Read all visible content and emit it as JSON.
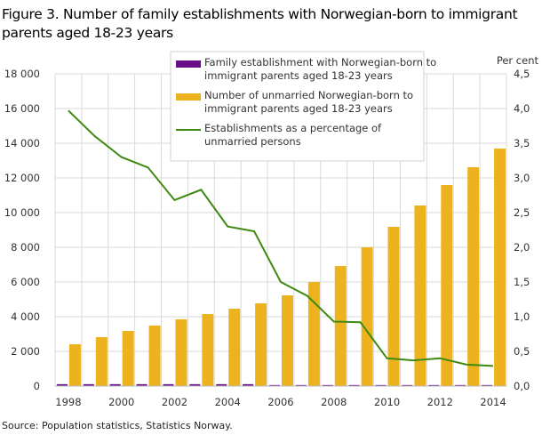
{
  "title": "Figure 3. Number of family establishments with Norwegian-born to immigrant parents aged 18-23 years",
  "source": "Source: Population  statistics, Statistics Norway.",
  "chart_data": {
    "type": "bar",
    "title": "Figure 3. Number of family establishments with Norwegian-born to immigrant parents aged 18-23 years",
    "categories": [
      1998,
      1999,
      2000,
      2001,
      2002,
      2003,
      2004,
      2005,
      2006,
      2007,
      2008,
      2009,
      2010,
      2011,
      2012,
      2013,
      2014
    ],
    "x_tick_labels": [
      "1998",
      "2000",
      "2002",
      "2004",
      "2006",
      "2008",
      "2010",
      "2012",
      "2014"
    ],
    "ylim": [
      0,
      18000
    ],
    "y_ticks": [
      "0",
      "2 000",
      "4 000",
      "6 000",
      "8 000",
      "10 000",
      "12 000",
      "14 000",
      "16 000",
      "18 000"
    ],
    "y2lim": [
      0,
      4.5
    ],
    "y2label": "Per cent",
    "y2_ticks": [
      "0,0",
      "0,5",
      "1,0",
      "1,5",
      "2,0",
      "2,5",
      "3,0",
      "3,5",
      "4,0",
      "4,5"
    ],
    "grid": true,
    "legend_position": "top-right",
    "series": [
      {
        "name": "Family establishment with Norwegian-born to immigrant parents aged 18-23 years",
        "type": "bar",
        "axis": "left",
        "color": "#6a0d8a",
        "values": [
          110,
          110,
          110,
          110,
          110,
          110,
          110,
          110,
          60,
          60,
          60,
          60,
          60,
          60,
          60,
          60,
          60
        ]
      },
      {
        "name": "Number of unmarried Norwegian-born to immigrant parents aged 18-23 years",
        "type": "bar",
        "axis": "left",
        "color": "#ecb31f",
        "values": [
          2410,
          2820,
          3180,
          3490,
          3850,
          4150,
          4460,
          4770,
          5230,
          6000,
          6920,
          8000,
          9180,
          10410,
          11590,
          12620,
          13690
        ]
      },
      {
        "name": "Establishments as a percentage of unmarried persons",
        "type": "line",
        "axis": "right",
        "color": "#3f8a12",
        "values": [
          3.97,
          3.6,
          3.3,
          3.15,
          2.68,
          2.83,
          2.3,
          2.23,
          1.5,
          1.3,
          0.93,
          0.92,
          0.4,
          0.37,
          0.4,
          0.31,
          0.29
        ]
      }
    ]
  }
}
